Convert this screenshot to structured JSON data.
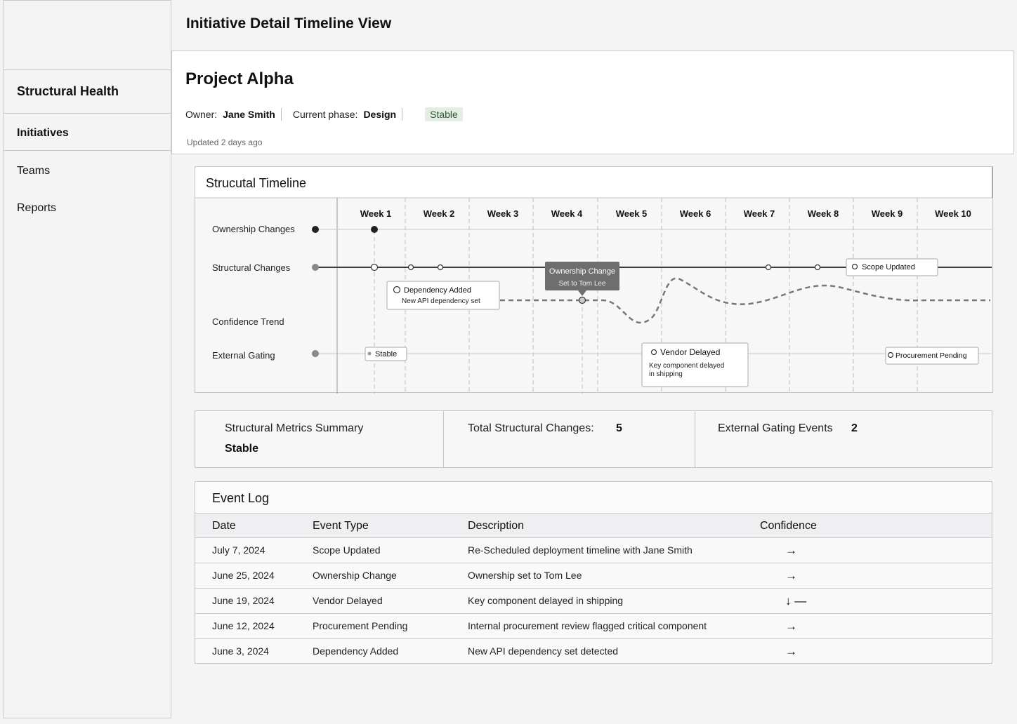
{
  "sidebar": {
    "section_title": "Structural Health",
    "items": [
      {
        "label": "Initiatives",
        "active": true
      },
      {
        "label": "Teams",
        "active": false
      },
      {
        "label": "Reports",
        "active": false
      }
    ]
  },
  "header": {
    "title": "Initiative Detail Timeline View"
  },
  "project": {
    "name": "Project Alpha",
    "owner_label": "Owner:",
    "owner": "Jane Smith",
    "phase_label": "Current phase:",
    "phase": "Design",
    "status": "Stable",
    "updated": "Updated 2 days ago"
  },
  "timeline": {
    "title": "Strucutal Timeline",
    "weeks": [
      "Week 1",
      "Week 2",
      "Week 3",
      "Week 4",
      "Week 5",
      "Week 6",
      "Week 7",
      "Week 8",
      "Week 9",
      "Week 10"
    ],
    "rows": [
      "Ownership Changes",
      "Structural Changes",
      "Confidence Trend",
      "External Gating"
    ],
    "callouts": {
      "dependency": {
        "title": "Dependency Added",
        "sub": "New API dependency set"
      },
      "ownership": {
        "title": "Ownership Change",
        "sub": "Set to Tom Lee"
      },
      "scope": {
        "title": "Scope Updated"
      },
      "stable": {
        "title": "Stable"
      },
      "vendor": {
        "title": "Vendor Delayed",
        "sub1": "Key component delayed",
        "sub2": "in shipping"
      },
      "procurement": {
        "title": "Procurement Pending"
      }
    }
  },
  "metrics": {
    "summary_label": "Structural Metrics Summary",
    "summary_value": "Stable",
    "changes_label": "Total Structural Changes:",
    "changes_value": "5",
    "gating_label": "External Gating Events",
    "gating_value": "2"
  },
  "eventlog": {
    "title": "Event Log",
    "columns": {
      "date": "Date",
      "type": "Event Type",
      "desc": "Description",
      "conf": "Confidence"
    },
    "rows": [
      {
        "date": "July 7, 2024",
        "type": "Scope Updated",
        "desc": "Re-Scheduled deployment timeline with Jane Smith",
        "conf": "→"
      },
      {
        "date": "June 25, 2024",
        "type": "Ownership Change",
        "desc": "Ownership set to Tom Lee",
        "conf": "→"
      },
      {
        "date": "June 19, 2024",
        "type": "Vendor Delayed",
        "desc": "Key component delayed in shipping",
        "conf": "↓ —"
      },
      {
        "date": "June 12, 2024",
        "type": "Procurement Pending",
        "desc": "Internal procurement review flagged critical component",
        "conf": "→"
      },
      {
        "date": "June 3, 2024",
        "type": "Dependency Added",
        "desc": "New API dependency set detected",
        "conf": "→"
      }
    ]
  }
}
